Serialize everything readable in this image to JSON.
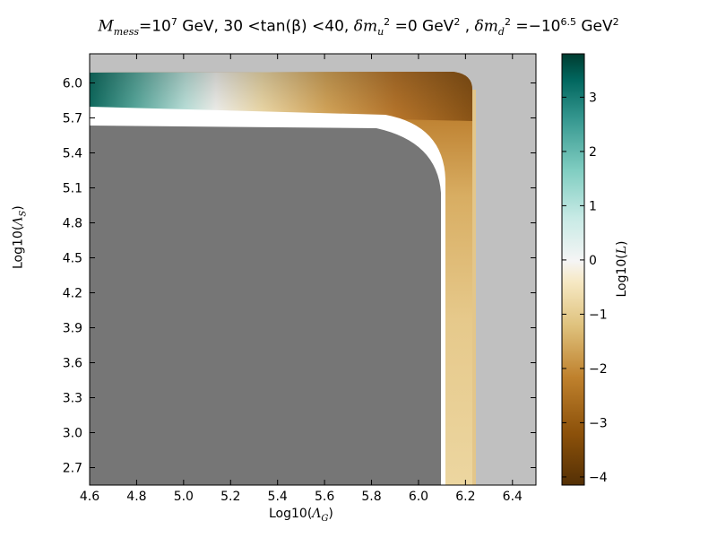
{
  "chart_data": {
    "type": "heatmap",
    "title": {
      "m_label": "M",
      "m_sub": "mess",
      "m_val_prefix": "=10",
      "m_exp": "7",
      "unit": "GeV,",
      "tan_part": "30 <tan(β) <40,",
      "dmu": "δm",
      "dmu_sub": "u",
      "dmu_sup": "2",
      "dmu_val": " =0",
      "unit2": "GeV",
      "unit2_sup": "2",
      "sep": ",",
      "dmd": "δm",
      "dmd_sub": "d",
      "dmd_sup": "2",
      "dmd_val": " =−10",
      "dmd_exp": "6.5",
      "unit3": "GeV",
      "unit3_sup": "2"
    },
    "xlabel_prefix": "Log10(",
    "xlabel_sym": "Λ",
    "xlabel_sub": "G",
    "xlabel_suffix": ")",
    "ylabel_prefix": "Log10(",
    "ylabel_sym": "Λ",
    "ylabel_sub": "S",
    "ylabel_suffix": ")",
    "colorbar_label_prefix": "Log10(",
    "colorbar_label_sym": "L",
    "colorbar_label_suffix": ")",
    "xlim": [
      4.6,
      6.5
    ],
    "ylim": [
      2.55,
      6.25
    ],
    "xticks": [
      "4.6",
      "4.8",
      "5.0",
      "5.2",
      "5.4",
      "5.6",
      "5.8",
      "6.0",
      "6.2",
      "6.4"
    ],
    "yticks": [
      "2.7",
      "3.0",
      "3.3",
      "3.6",
      "3.9",
      "4.2",
      "4.5",
      "4.8",
      "5.1",
      "5.4",
      "5.7",
      "6.0"
    ],
    "colorbar_ticks": [
      "−4",
      "−3",
      "−2",
      "−1",
      "0",
      "1",
      "2",
      "3"
    ],
    "colorbar_range": [
      -4.15,
      3.8
    ],
    "colormap": "BrBG",
    "colors": {
      "excluded_region": "#767676",
      "background": "#c0c0c0",
      "gap": "#ffffff"
    },
    "regions": {
      "excluded_upper_x": 6.1,
      "excluded_upper_y": 5.65,
      "colored_band_upper_x": 6.25,
      "colored_band_upper_y": 6.1
    }
  }
}
